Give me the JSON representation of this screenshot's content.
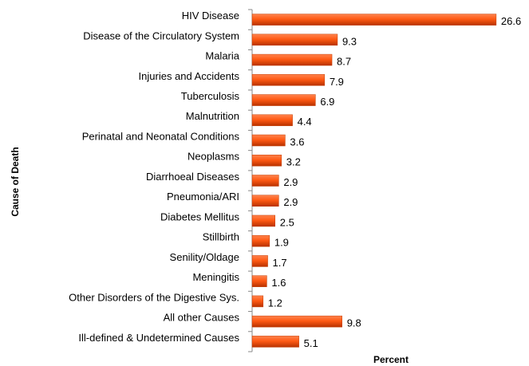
{
  "chart_data": {
    "type": "bar",
    "orientation": "horizontal",
    "xlabel": "Percent",
    "ylabel": "Cause of Death",
    "categories": [
      "HIV Disease",
      "Disease of the Circulatory System",
      "Malaria",
      "Injuries and Accidents",
      "Tuberculosis",
      "Malnutrition",
      "Perinatal and Neonatal Conditions",
      "Neoplasms",
      "Diarrhoeal Diseases",
      "Pneumonia/ARI",
      "Diabetes Mellitus",
      "Stillbirth",
      "Senility/Oldage",
      "Meningitis",
      "Other Disorders of the Digestive Sys.",
      "All other Causes",
      "Ill-defined & Undetermined Causes"
    ],
    "values": [
      26.6,
      9.3,
      8.7,
      7.9,
      6.9,
      4.4,
      3.6,
      3.2,
      2.9,
      2.9,
      2.5,
      1.9,
      1.7,
      1.6,
      1.2,
      9.8,
      5.1
    ],
    "color": "#ff5a14",
    "xlim": [
      0,
      28
    ]
  }
}
